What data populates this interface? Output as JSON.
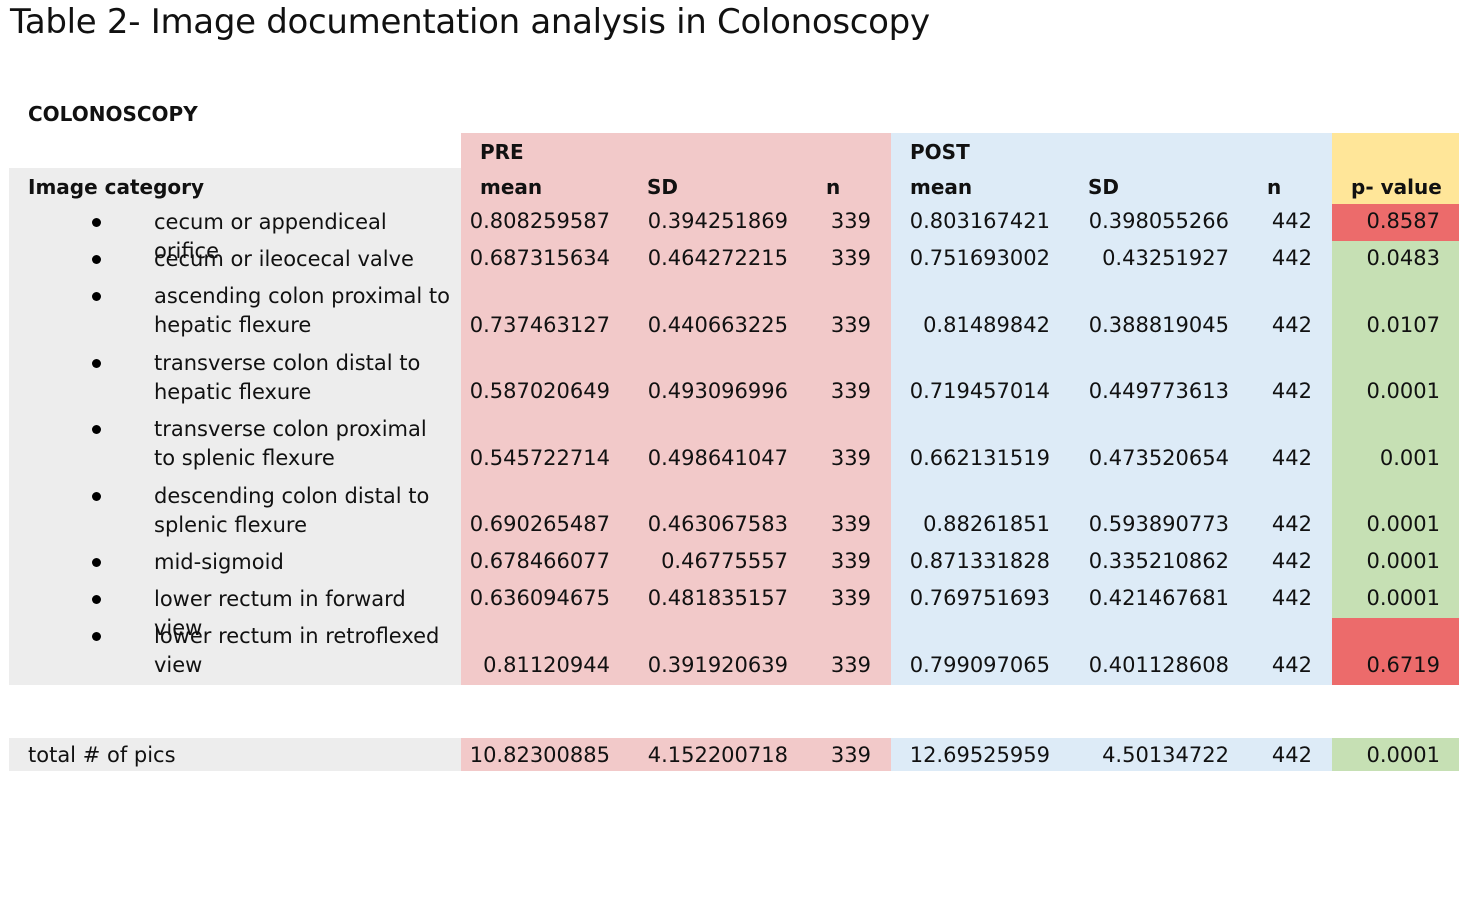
{
  "title": "Table 2- Image documentation analysis in Colonoscopy",
  "section": "COLONOSCOPY",
  "headers": {
    "pre": "PRE",
    "post": "POST",
    "category": "Image category",
    "mean": "mean",
    "sd": "SD",
    "n": "n",
    "p": "p- value"
  },
  "colors": {
    "pre_bg": "#f2c9c9",
    "post_bg": "#ddebf7",
    "label_bg": "#ededed",
    "p_header_bg": "#ffe699",
    "p_sig_bg": "#c6e0b4",
    "p_nonsig_bg": "#ec6b6b"
  },
  "rows": [
    {
      "label": "cecum or appendiceal orifice",
      "pre_mean": "0.808259587",
      "pre_sd": "0.394251869",
      "pre_n": "339",
      "post_mean": "0.803167421",
      "post_sd": "0.398055266",
      "post_n": "442",
      "p": "0.8587",
      "significant": false
    },
    {
      "label": "cecum or ileocecal valve",
      "pre_mean": "0.687315634",
      "pre_sd": "0.464272215",
      "pre_n": "339",
      "post_mean": "0.751693002",
      "post_sd": "0.43251927",
      "post_n": "442",
      "p": "0.0483",
      "significant": true
    },
    {
      "label": "ascending colon proximal to hepatic flexure",
      "pre_mean": "0.737463127",
      "pre_sd": "0.440663225",
      "pre_n": "339",
      "post_mean": "0.81489842",
      "post_sd": "0.388819045",
      "post_n": "442",
      "p": "0.0107",
      "significant": true
    },
    {
      "label": "transverse colon distal to hepatic flexure",
      "pre_mean": "0.587020649",
      "pre_sd": "0.493096996",
      "pre_n": "339",
      "post_mean": "0.719457014",
      "post_sd": "0.449773613",
      "post_n": "442",
      "p": "0.0001",
      "significant": true
    },
    {
      "label": "transverse colon proximal to splenic flexure",
      "pre_mean": "0.545722714",
      "pre_sd": "0.498641047",
      "pre_n": "339",
      "post_mean": "0.662131519",
      "post_sd": "0.473520654",
      "post_n": "442",
      "p": "0.001",
      "significant": true
    },
    {
      "label": "descending colon distal to splenic flexure",
      "pre_mean": "0.690265487",
      "pre_sd": "0.463067583",
      "pre_n": "339",
      "post_mean": "0.88261851",
      "post_sd": "0.593890773",
      "post_n": "442",
      "p": "0.0001",
      "significant": true
    },
    {
      "label": "mid-sigmoid",
      "pre_mean": "0.678466077",
      "pre_sd": "0.46775557",
      "pre_n": "339",
      "post_mean": "0.871331828",
      "post_sd": "0.335210862",
      "post_n": "442",
      "p": "0.0001",
      "significant": true
    },
    {
      "label": "lower rectum in forward view",
      "pre_mean": "0.636094675",
      "pre_sd": "0.481835157",
      "pre_n": "339",
      "post_mean": "0.769751693",
      "post_sd": "0.421467681",
      "post_n": "442",
      "p": "0.0001",
      "significant": true
    },
    {
      "label": "lower rectum in retroflexed view",
      "pre_mean": "0.81120944",
      "pre_sd": "0.391920639",
      "pre_n": "339",
      "post_mean": "0.799097065",
      "post_sd": "0.401128608",
      "post_n": "442",
      "p": "0.6719",
      "significant": false
    }
  ],
  "total": {
    "label": "total # of pics",
    "pre_mean": "10.82300885",
    "pre_sd": "4.152200718",
    "pre_n": "339",
    "post_mean": "12.69525959",
    "post_sd": "4.50134722",
    "post_n": "442",
    "p": "0.0001",
    "significant": true
  }
}
